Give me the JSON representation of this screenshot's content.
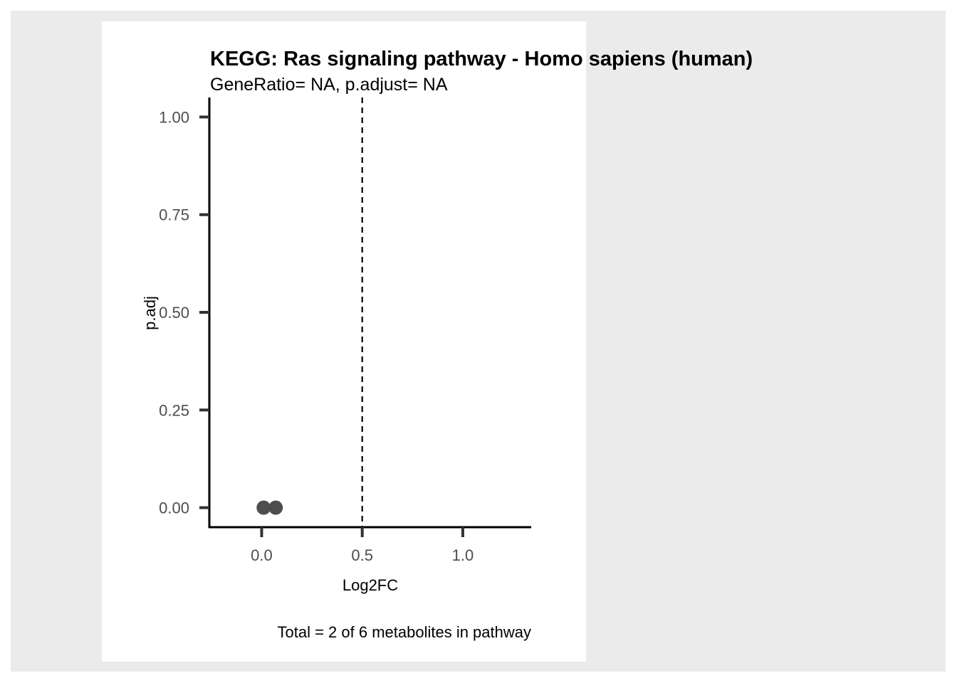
{
  "chart_data": {
    "type": "scatter",
    "title": "KEGG: Ras signaling pathway - Homo sapiens (human)",
    "subtitle": "GeneRatio= NA, p.adjust= NA",
    "xlabel": "Log2FC",
    "ylabel": "p.adj",
    "caption": "Total = 2 of 6 metabolites in pathway",
    "xlim": [
      -0.26,
      1.34
    ],
    "ylim": [
      -0.05,
      1.05
    ],
    "x_ticks": [
      0.0,
      0.5,
      1.0
    ],
    "x_tick_labels": [
      "0.0",
      "0.5",
      "1.0"
    ],
    "y_ticks": [
      0.0,
      0.25,
      0.5,
      0.75,
      1.0
    ],
    "y_tick_labels": [
      "0.00",
      "0.25",
      "0.50",
      "0.75",
      "1.00"
    ],
    "points": [
      {
        "x": 0.01,
        "y": 0.0
      },
      {
        "x": 0.07,
        "y": 0.0
      }
    ],
    "vline": {
      "x": 0.5,
      "style": "dashed"
    },
    "grid": false,
    "point_color": "#4d4d4d",
    "background_color": "#ebebeb"
  }
}
